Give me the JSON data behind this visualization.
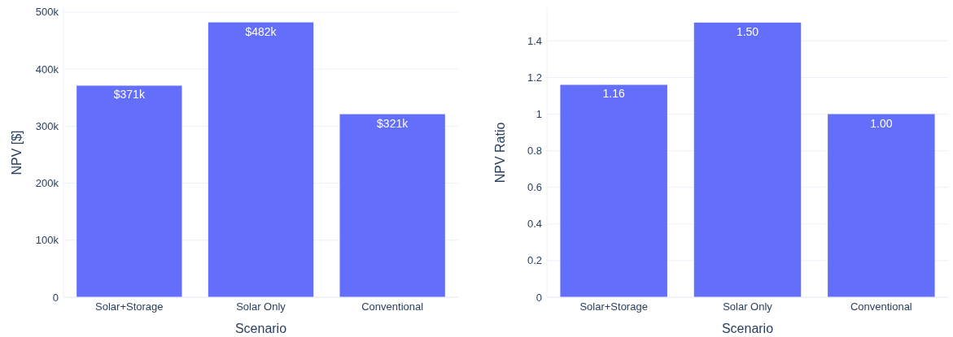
{
  "chart_data": [
    {
      "type": "bar",
      "categories": [
        "Solar+Storage",
        "Solar Only",
        "Conventional"
      ],
      "values": [
        371000,
        482000,
        321000
      ],
      "color": "#636efa",
      "value_labels": [
        "$371k",
        "$482k",
        "$321k"
      ],
      "xlabel": "Scenario",
      "ylabel": "NPV [$]",
      "ylim": [
        0,
        507000
      ],
      "yticks": [
        0,
        {
          "value": 100000,
          "label": "100k"
        },
        {
          "value": 200000,
          "label": "200k"
        },
        {
          "value": 300000,
          "label": "300k"
        },
        {
          "value": 400000,
          "label": "400k"
        },
        {
          "value": 500000,
          "label": "500k"
        }
      ],
      "grid": "y"
    },
    {
      "type": "bar",
      "categories": [
        "Solar+Storage",
        "Solar Only",
        "Conventional"
      ],
      "values": [
        1.16,
        1.5,
        1.0
      ],
      "color": "#636efa",
      "value_labels": [
        "1.16",
        "1.50",
        "1.00"
      ],
      "xlabel": "Scenario",
      "ylabel": "NPV Ratio",
      "ylim": [
        0,
        1.579
      ],
      "yticks": [
        0,
        0.2,
        0.4,
        0.6,
        0.8,
        1,
        1.2,
        1.4
      ],
      "grid": "y"
    }
  ]
}
